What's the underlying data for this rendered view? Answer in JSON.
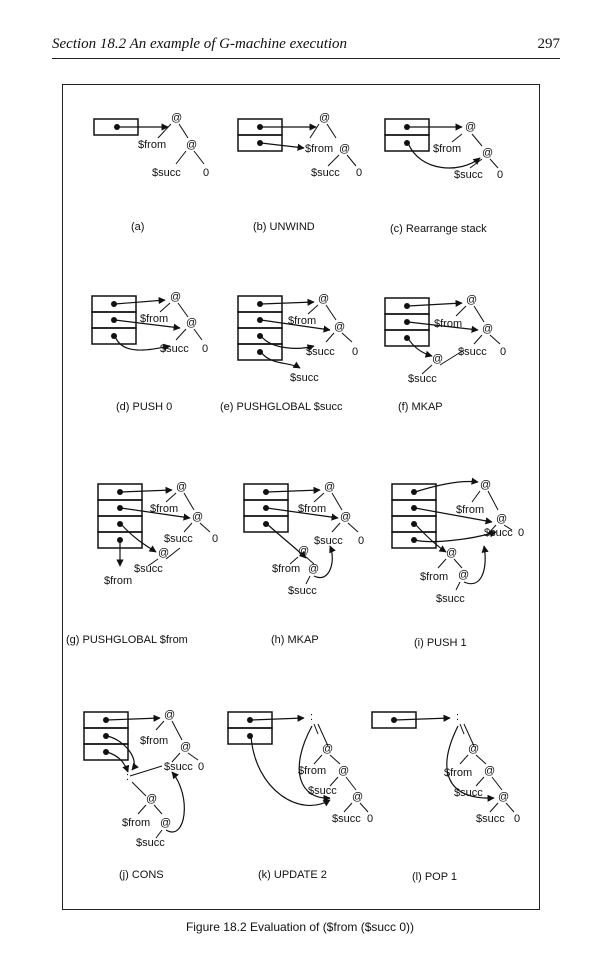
{
  "header": {
    "section": "Section 18.2  An example of G-machine execution",
    "page_number": "297"
  },
  "panels": [
    {
      "caption": "(a)"
    },
    {
      "caption": "(b)  UNWIND"
    },
    {
      "caption": "(c)  Rearrange stack"
    },
    {
      "caption": "(d)  PUSH  0"
    },
    {
      "caption": "(e)  PUSHGLOBAL  $succ"
    },
    {
      "caption": "(f)  MKAP"
    },
    {
      "caption": "(g)  PUSHGLOBAL  $from"
    },
    {
      "caption": "(h)  MKAP"
    },
    {
      "caption": "(i)  PUSH  1"
    },
    {
      "caption": "(j)  CONS"
    },
    {
      "caption": "(k)  UPDATE  2"
    },
    {
      "caption": "(l)  POP  1"
    }
  ],
  "labels": {
    "at": "@",
    "from": "$from",
    "succ": "$succ",
    "zero": "0",
    "colon": ":"
  },
  "figure_caption": "Figure 18.2  Evaluation of ($from  ($succ  0))"
}
